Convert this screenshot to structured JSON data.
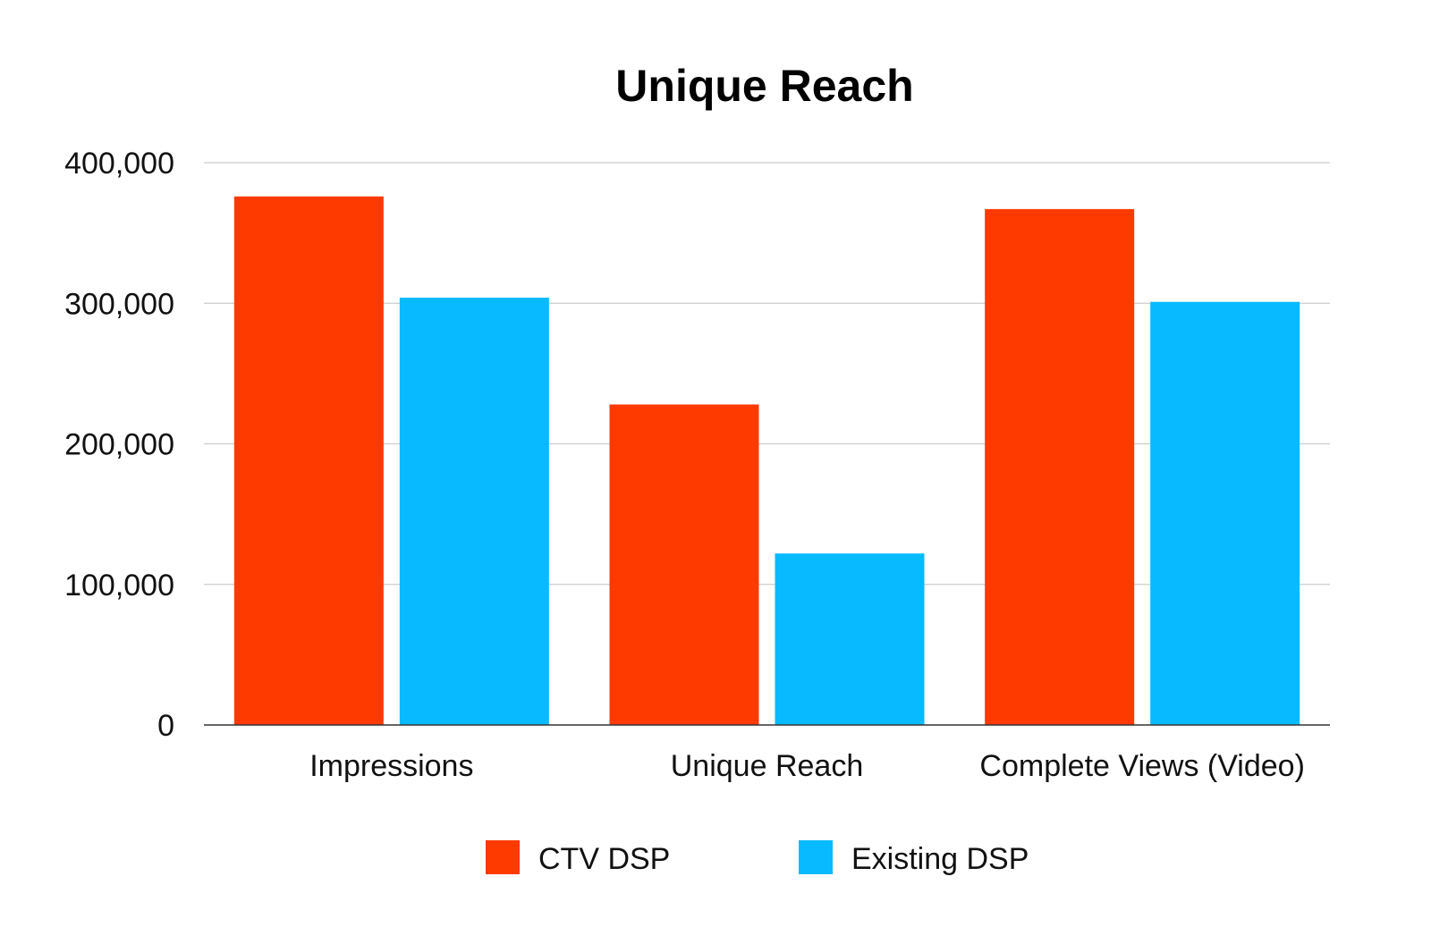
{
  "chart_data": {
    "type": "bar",
    "title": "Unique Reach",
    "xlabel": "",
    "ylabel": "",
    "ylim": [
      0,
      400000
    ],
    "yticks": [
      0,
      100000,
      200000,
      300000,
      400000
    ],
    "ytick_labels": [
      "0",
      "100,000",
      "200,000",
      "300,000",
      "400,000"
    ],
    "grid": true,
    "legend_position": "bottom-center",
    "categories": [
      "Impressions",
      "Unique Reach",
      "Complete Views (Video)"
    ],
    "series": [
      {
        "name": "CTV DSP",
        "color": "#ff3a00",
        "values": [
          376000,
          228000,
          367000
        ]
      },
      {
        "name": "Existing DSP",
        "color": "#08baff",
        "values": [
          304000,
          122000,
          301000
        ]
      }
    ]
  }
}
